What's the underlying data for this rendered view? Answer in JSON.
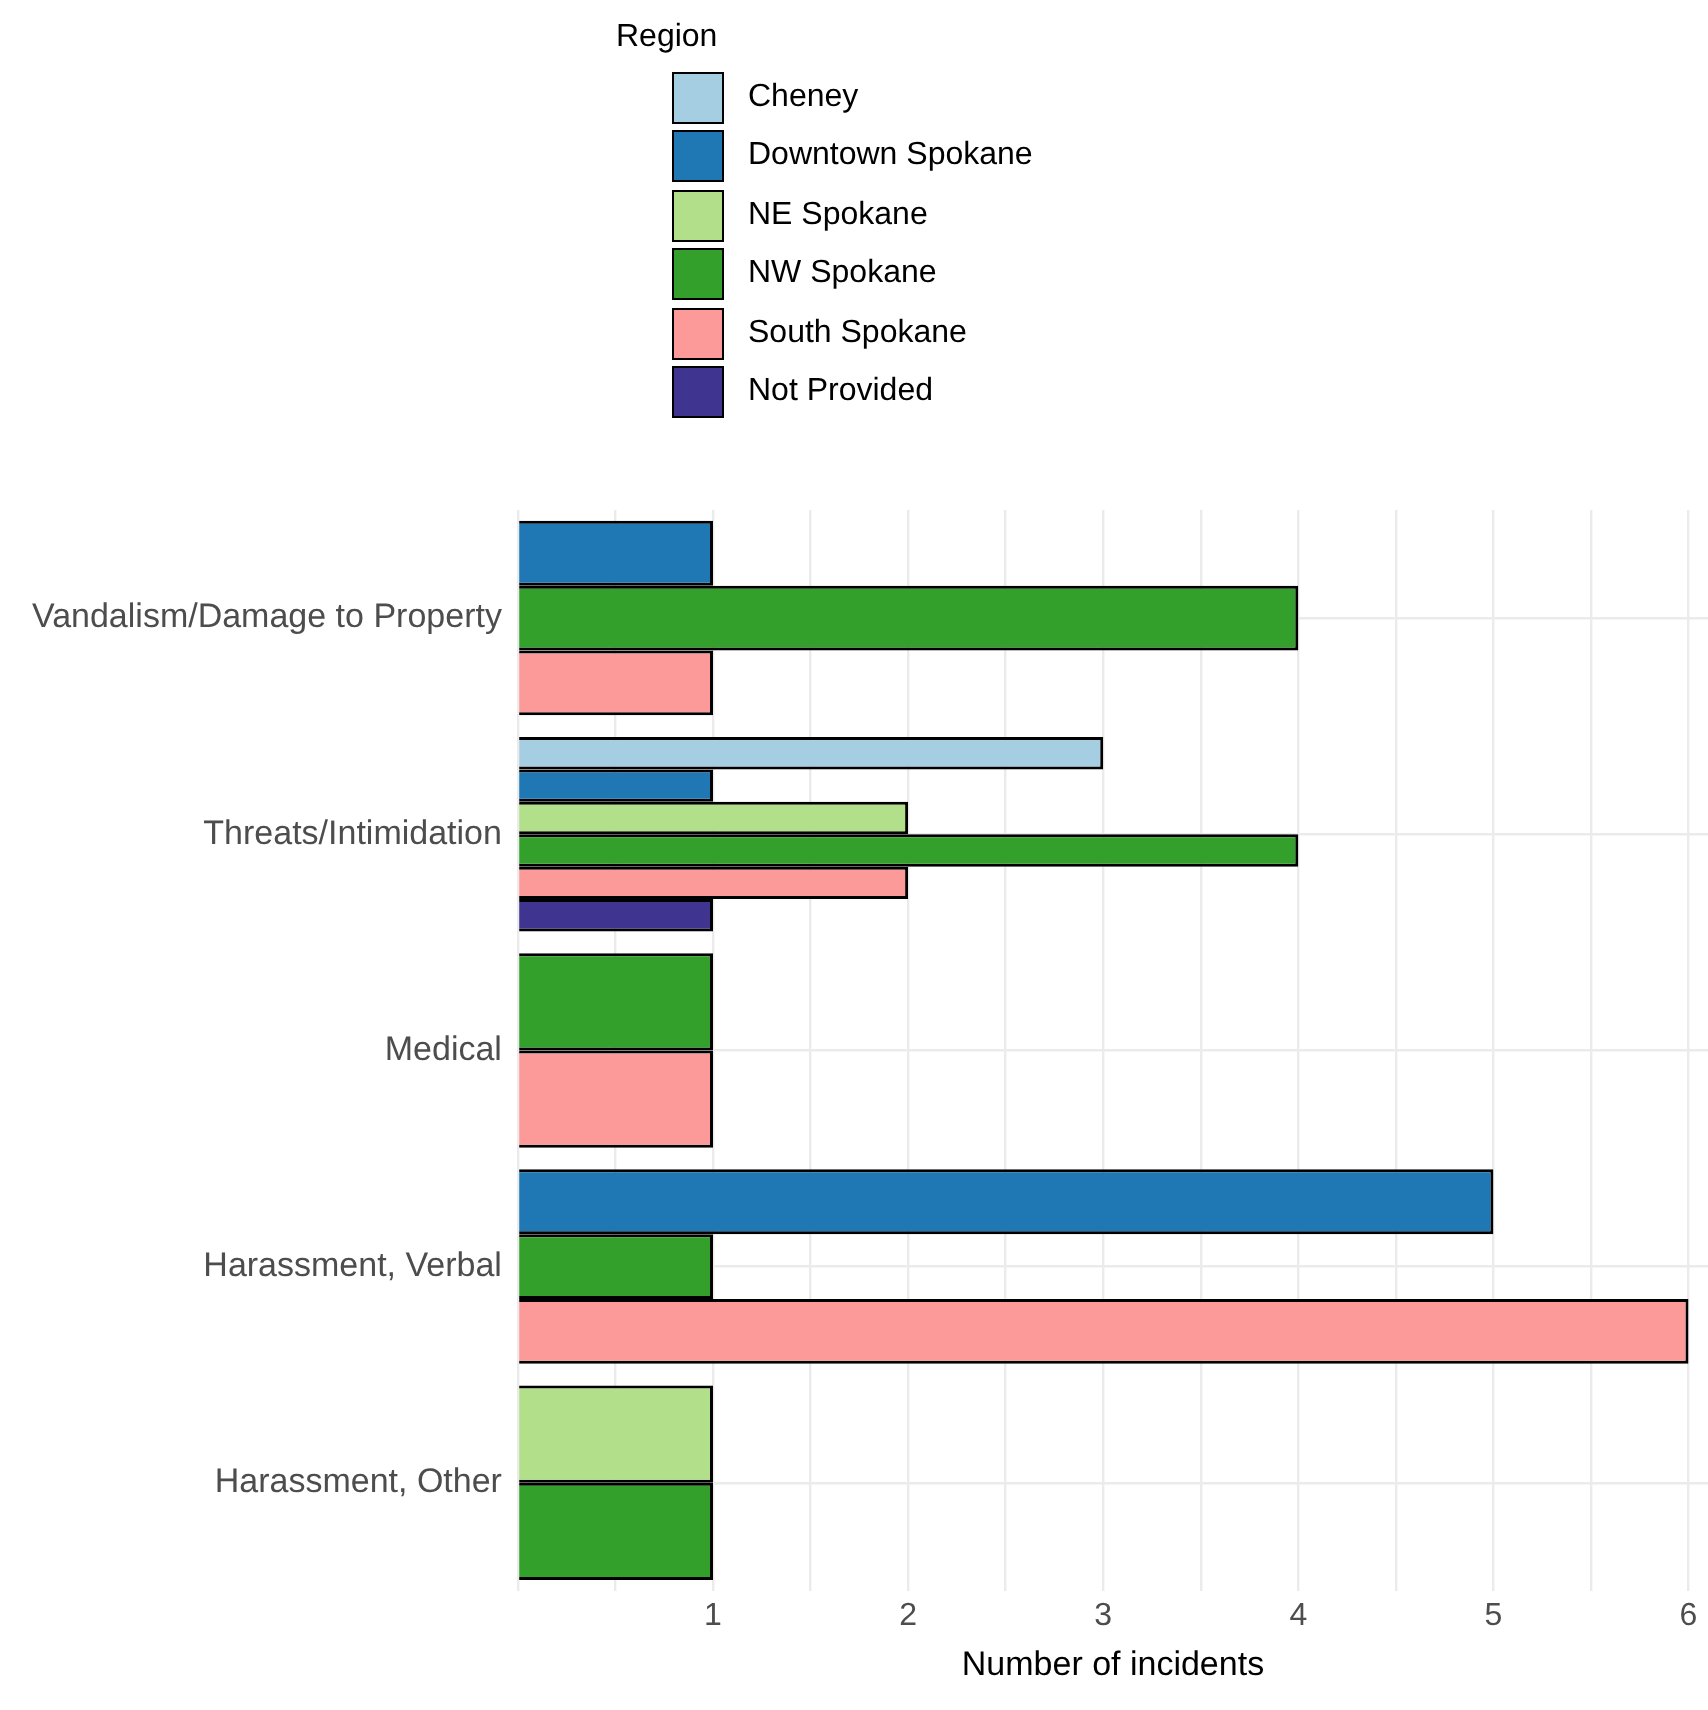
{
  "chart_data": {
    "type": "bar",
    "orientation": "horizontal",
    "xlabel": "Number of incidents",
    "legend_title": "Region",
    "legend": "top",
    "grid": true,
    "categories": [
      "Vandalism/Damage to Property",
      "Threats/Intimidation",
      "Medical",
      "Harassment, Verbal",
      "Harassment, Other"
    ],
    "xlim": [
      0,
      6.1
    ],
    "xticks": [
      {
        "value": 0,
        "label": null
      },
      {
        "value": 0.5,
        "label": null
      },
      1,
      {
        "value": 1.5,
        "label": null
      },
      2,
      {
        "value": 2.5,
        "label": null
      },
      3,
      {
        "value": 3.5,
        "label": null
      },
      4,
      {
        "value": 4.5,
        "label": null
      },
      5,
      {
        "value": 5.5,
        "label": null
      },
      6
    ],
    "series": [
      {
        "name": "Cheney",
        "color": "#a6cee3",
        "values": [
          null,
          3,
          null,
          null,
          null
        ]
      },
      {
        "name": "Downtown Spokane",
        "color": "#1f78b4",
        "values": [
          1,
          1,
          null,
          5,
          null
        ]
      },
      {
        "name": "NE Spokane",
        "color": "#b2df8a",
        "values": [
          null,
          2,
          null,
          null,
          1
        ]
      },
      {
        "name": "NW Spokane",
        "color": "#33a02c",
        "values": [
          4,
          4,
          1,
          1,
          1
        ]
      },
      {
        "name": "South Spokane",
        "color": "#fb9a99",
        "values": [
          1,
          2,
          1,
          6,
          null
        ]
      },
      {
        "name": "Not Provided",
        "color": "#3f3590",
        "values": [
          null,
          1,
          null,
          null,
          null
        ]
      }
    ]
  }
}
